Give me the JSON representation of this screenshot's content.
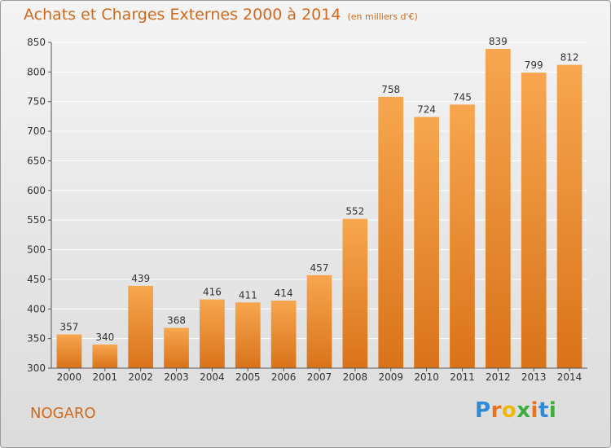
{
  "title": "Achats et Charges Externes 2000 à 2014",
  "subtitle": "(en milliers d'€)",
  "place": "NOGARO",
  "logo": {
    "text": "Proxiti",
    "letters": [
      {
        "ch": "P",
        "color": "#2e8bd8"
      },
      {
        "ch": "r",
        "color": "#e8731c"
      },
      {
        "ch": "o",
        "color": "#f0b800"
      },
      {
        "ch": "x",
        "color": "#3cae3c"
      },
      {
        "ch": "i",
        "color": "#e8731c"
      },
      {
        "ch": "t",
        "color": "#2e8bd8"
      },
      {
        "ch": "i",
        "color": "#3cae3c"
      }
    ]
  },
  "colors": {
    "bar_light": "#f7a64f",
    "bar_dark": "#d9731a",
    "title": "#d2691e",
    "grid": "#ffffff"
  },
  "chart_data": {
    "type": "bar",
    "categories": [
      "2000",
      "2001",
      "2002",
      "2003",
      "2004",
      "2005",
      "2006",
      "2007",
      "2008",
      "2009",
      "2010",
      "2011",
      "2012",
      "2013",
      "2014"
    ],
    "values": [
      357,
      340,
      439,
      368,
      416,
      411,
      414,
      457,
      552,
      758,
      724,
      745,
      839,
      799,
      812
    ],
    "ylim": [
      300,
      850
    ],
    "yticks": [
      300,
      350,
      400,
      450,
      500,
      550,
      600,
      650,
      700,
      750,
      800,
      850
    ],
    "grid": true,
    "xlabel": "",
    "ylabel": ""
  }
}
